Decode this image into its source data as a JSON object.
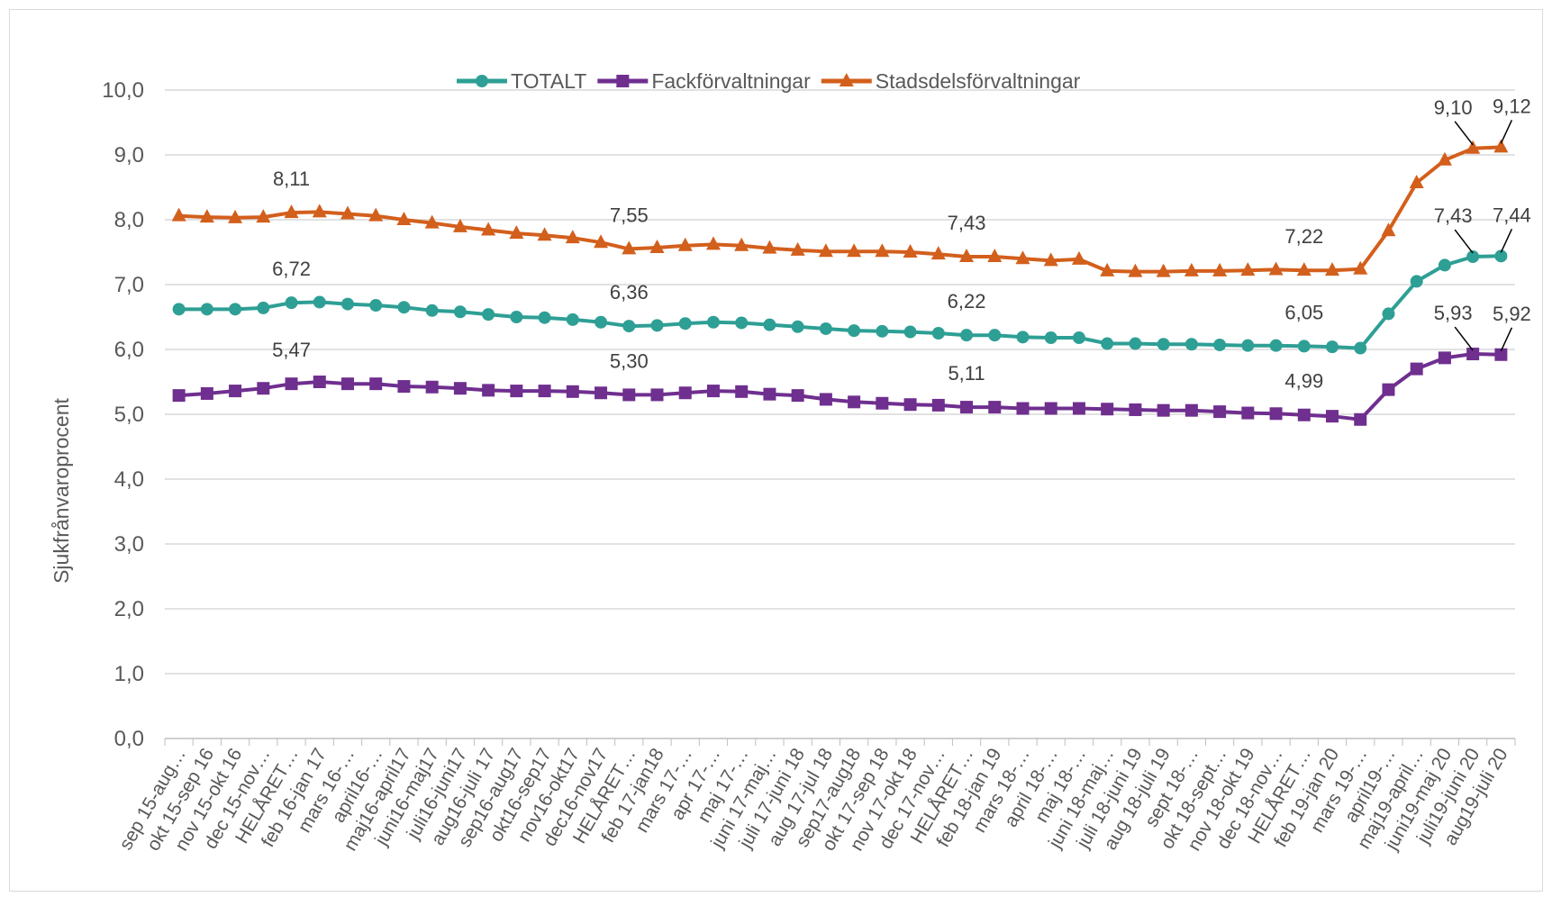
{
  "chart_data": {
    "type": "line",
    "ylabel": "Sjukfrånvaroprocent",
    "ylim": [
      0,
      10
    ],
    "yticks": [
      "0,0",
      "1,0",
      "2,0",
      "3,0",
      "4,0",
      "5,0",
      "6,0",
      "7,0",
      "8,0",
      "9,0",
      "10,0"
    ],
    "grid": true,
    "legend_position": "top",
    "categories": [
      "sep 15-aug…",
      "okt 15-sep 16",
      "nov 15-okt 16",
      "dec 15-nov…",
      "HELÅRET…",
      "feb 16-jan 17",
      "mars 16-…",
      "april16-…",
      "maj16-april17",
      "juni16-maj17",
      "juli16-juni17",
      "aug16-juli 17",
      "sep16-aug17",
      "okt16-sep17",
      "nov16-okt17",
      "dec16-nov17",
      "HELÅRET…",
      "feb 17-jan18",
      "mars 17-…",
      "apr 17-…",
      "maj 17-…",
      "juni 17-maj…",
      "juli 17-juni 18",
      "aug 17-jul 18",
      "sep17-aug18",
      "okt 17-sep 18",
      "nov 17-okt 18",
      "dec 17-nov…",
      "HELÅRET…",
      "feb 18-jan 19",
      "mars 18-…",
      "april 18-…",
      "maj 18-…",
      "juni 18-maj…",
      "juli 18-juni 19",
      "aug 18-juli 19",
      "sept 18-…",
      "okt 18-sept…",
      "nov 18-okt 19",
      "dec 18-nov…",
      "HELÅRET…",
      "feb 19-jan 20",
      "mars 19-…",
      "april19-…",
      "maj19-april…",
      "juni19-maj 20",
      "juli19-juni 20",
      "aug19-juli 20"
    ],
    "series": [
      {
        "name": "TOTALT",
        "color": "#2e9f95",
        "marker": "circle",
        "values": [
          6.62,
          6.62,
          6.62,
          6.64,
          6.72,
          6.73,
          6.7,
          6.68,
          6.65,
          6.6,
          6.58,
          6.54,
          6.5,
          6.49,
          6.46,
          6.42,
          6.36,
          6.37,
          6.4,
          6.42,
          6.41,
          6.38,
          6.35,
          6.32,
          6.29,
          6.28,
          6.27,
          6.25,
          6.22,
          6.22,
          6.19,
          6.18,
          6.18,
          6.09,
          6.09,
          6.08,
          6.08,
          6.07,
          6.06,
          6.06,
          6.05,
          6.04,
          6.02,
          6.55,
          7.05,
          7.3,
          7.43,
          7.44
        ]
      },
      {
        "name": "Fackförvaltningar",
        "color": "#6f2f8f",
        "marker": "square",
        "values": [
          5.29,
          5.32,
          5.36,
          5.4,
          5.47,
          5.5,
          5.47,
          5.47,
          5.43,
          5.42,
          5.4,
          5.37,
          5.36,
          5.36,
          5.35,
          5.33,
          5.3,
          5.3,
          5.33,
          5.36,
          5.35,
          5.31,
          5.29,
          5.23,
          5.19,
          5.17,
          5.15,
          5.14,
          5.11,
          5.11,
          5.09,
          5.09,
          5.09,
          5.08,
          5.07,
          5.06,
          5.06,
          5.04,
          5.02,
          5.01,
          4.99,
          4.97,
          4.92,
          5.38,
          5.7,
          5.87,
          5.93,
          5.92
        ]
      },
      {
        "name": "Stadsdelsförvaltningar",
        "color": "#d35f1c",
        "marker": "triangle",
        "values": [
          8.06,
          8.04,
          8.03,
          8.04,
          8.11,
          8.12,
          8.09,
          8.06,
          8.0,
          7.95,
          7.89,
          7.84,
          7.79,
          7.76,
          7.72,
          7.65,
          7.55,
          7.57,
          7.6,
          7.62,
          7.6,
          7.56,
          7.53,
          7.51,
          7.51,
          7.51,
          7.5,
          7.47,
          7.43,
          7.43,
          7.4,
          7.37,
          7.39,
          7.21,
          7.2,
          7.2,
          7.21,
          7.21,
          7.22,
          7.23,
          7.22,
          7.22,
          7.24,
          7.83,
          8.57,
          8.92,
          9.1,
          9.12
        ]
      }
    ],
    "annotations": [
      {
        "series": 2,
        "index": 4,
        "text": "8,11"
      },
      {
        "series": 0,
        "index": 4,
        "text": "6,72"
      },
      {
        "series": 1,
        "index": 4,
        "text": "5,47"
      },
      {
        "series": 2,
        "index": 16,
        "text": "7,55"
      },
      {
        "series": 0,
        "index": 16,
        "text": "6,36"
      },
      {
        "series": 1,
        "index": 16,
        "text": "5,30"
      },
      {
        "series": 2,
        "index": 28,
        "text": "7,43"
      },
      {
        "series": 0,
        "index": 28,
        "text": "6,22"
      },
      {
        "series": 1,
        "index": 28,
        "text": "5,11"
      },
      {
        "series": 2,
        "index": 40,
        "text": "7,22"
      },
      {
        "series": 0,
        "index": 40,
        "text": "6,05"
      },
      {
        "series": 1,
        "index": 40,
        "text": "4,99"
      },
      {
        "series": 2,
        "index": 46,
        "text": "9,10"
      },
      {
        "series": 2,
        "index": 47,
        "text": "9,12"
      },
      {
        "series": 0,
        "index": 46,
        "text": "7,43"
      },
      {
        "series": 0,
        "index": 47,
        "text": "7,44"
      },
      {
        "series": 1,
        "index": 46,
        "text": "5,93"
      },
      {
        "series": 1,
        "index": 47,
        "text": "5,92"
      }
    ]
  }
}
